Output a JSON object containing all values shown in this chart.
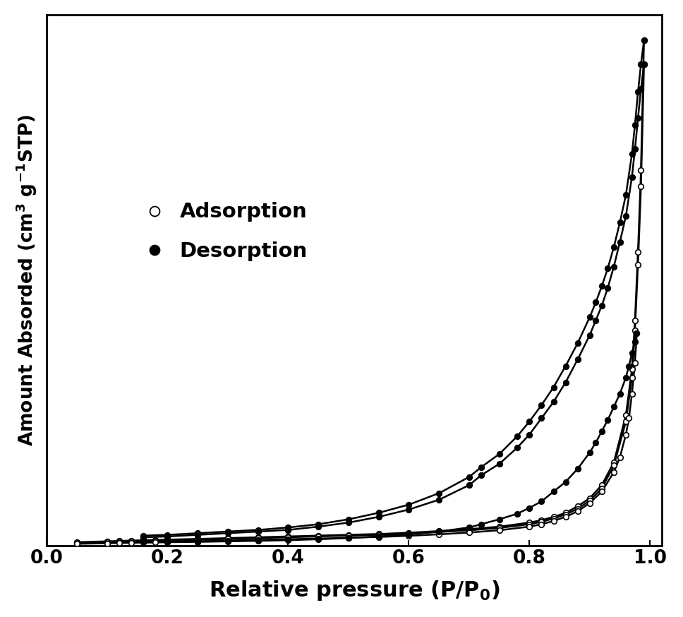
{
  "ylabel": "Amount Absorded (cm$^3$ g$^{-1}$STP)",
  "xlabel": "Relative pressure (P/P$_0$)",
  "background_color": "#ffffff",
  "xlim": [
    0.0,
    1.02
  ],
  "legend_adsorption": "Adsorption",
  "legend_desorption": "Desorption",
  "curves": [
    {
      "name": "curve1_ads",
      "type": "adsorption",
      "x": [
        0.05,
        0.1,
        0.12,
        0.14,
        0.16,
        0.18,
        0.2,
        0.25,
        0.3,
        0.35,
        0.4,
        0.45,
        0.5,
        0.55,
        0.6,
        0.65,
        0.7,
        0.75,
        0.8,
        0.82,
        0.84,
        0.86,
        0.88,
        0.9,
        0.92,
        0.94,
        0.96,
        0.97,
        0.975,
        0.98,
        0.985,
        0.99
      ],
      "y": [
        2,
        2.5,
        2.8,
        3.0,
        3.2,
        3.4,
        3.6,
        4.0,
        4.5,
        5.0,
        5.5,
        6.0,
        6.5,
        7.0,
        7.8,
        8.8,
        10.0,
        11.5,
        14,
        15.5,
        17.5,
        20,
        24,
        29,
        37,
        51,
        80,
        108,
        138,
        180,
        230,
        310
      ]
    },
    {
      "name": "curve1_des",
      "type": "desorption",
      "x": [
        0.99,
        0.985,
        0.98,
        0.975,
        0.97,
        0.96,
        0.95,
        0.94,
        0.93,
        0.92,
        0.91,
        0.9,
        0.88,
        0.86,
        0.84,
        0.82,
        0.8,
        0.78,
        0.75,
        0.72,
        0.7,
        0.65,
        0.6,
        0.55,
        0.5,
        0.45,
        0.4,
        0.35,
        0.3,
        0.25,
        0.2,
        0.16
      ],
      "y": [
        310,
        295,
        278,
        258,
        240,
        215,
        198,
        183,
        170,
        159,
        149,
        140,
        124,
        110,
        97,
        86,
        76,
        67,
        56,
        48,
        42,
        32,
        25,
        20,
        16,
        13,
        11,
        9.5,
        8.5,
        7.5,
        6.5,
        6.0
      ]
    },
    {
      "name": "curve2_ads",
      "type": "adsorption",
      "x": [
        0.05,
        0.1,
        0.12,
        0.14,
        0.16,
        0.18,
        0.2,
        0.25,
        0.3,
        0.35,
        0.4,
        0.45,
        0.5,
        0.55,
        0.6,
        0.65,
        0.7,
        0.75,
        0.8,
        0.82,
        0.84,
        0.86,
        0.88,
        0.9,
        0.92,
        0.94,
        0.96,
        0.97,
        0.975,
        0.98,
        0.985,
        0.99
      ],
      "y": [
        1.5,
        2.0,
        2.2,
        2.4,
        2.6,
        2.8,
        3.0,
        3.5,
        4.0,
        4.5,
        5.0,
        5.5,
        6.0,
        6.5,
        7.3,
        8.2,
        9.3,
        10.7,
        13,
        14.5,
        16.5,
        19,
        22.5,
        27.5,
        35,
        49,
        76,
        103,
        132,
        172,
        220,
        295
      ]
    },
    {
      "name": "curve2_des",
      "type": "desorption",
      "x": [
        0.99,
        0.985,
        0.98,
        0.975,
        0.97,
        0.96,
        0.95,
        0.94,
        0.93,
        0.92,
        0.91,
        0.9,
        0.88,
        0.86,
        0.84,
        0.82,
        0.8,
        0.78,
        0.75,
        0.72,
        0.7,
        0.65,
        0.6,
        0.55,
        0.5,
        0.45,
        0.4,
        0.35,
        0.3,
        0.25,
        0.2,
        0.16
      ],
      "y": [
        295,
        280,
        262,
        243,
        226,
        202,
        186,
        171,
        158,
        147,
        138,
        129,
        114,
        100,
        88,
        78,
        68,
        60,
        50,
        43,
        37,
        28,
        22,
        17.5,
        14,
        11.5,
        9.5,
        8.5,
        7.5,
        6.5,
        5.5,
        5.0
      ]
    },
    {
      "name": "curve3_ads",
      "type": "adsorption",
      "x": [
        0.05,
        0.1,
        0.12,
        0.14,
        0.16,
        0.18,
        0.2,
        0.25,
        0.3,
        0.35,
        0.4,
        0.45,
        0.5,
        0.55,
        0.6,
        0.65,
        0.7,
        0.75,
        0.8,
        0.82,
        0.84,
        0.86,
        0.88,
        0.9,
        0.92,
        0.94,
        0.95,
        0.96,
        0.965,
        0.97,
        0.975,
        0.978
      ],
      "y": [
        1.0,
        1.3,
        1.5,
        1.6,
        1.8,
        2.0,
        2.2,
        2.6,
        3.0,
        3.4,
        3.8,
        4.2,
        4.7,
        5.2,
        5.9,
        6.8,
        7.9,
        9.3,
        11.5,
        13,
        15,
        17.5,
        21,
        26,
        33,
        45,
        54,
        68,
        78,
        93,
        112,
        130
      ]
    },
    {
      "name": "curve3_des",
      "type": "desorption",
      "x": [
        0.978,
        0.975,
        0.97,
        0.965,
        0.96,
        0.95,
        0.94,
        0.93,
        0.92,
        0.91,
        0.9,
        0.88,
        0.86,
        0.84,
        0.82,
        0.8,
        0.78,
        0.75,
        0.72,
        0.7,
        0.65,
        0.6,
        0.55,
        0.5,
        0.45,
        0.4,
        0.35,
        0.3,
        0.25,
        0.2,
        0.16
      ],
      "y": [
        130,
        125,
        118,
        110,
        103,
        93,
        85,
        77,
        70,
        63,
        57,
        47,
        39,
        33,
        27,
        23,
        19.5,
        16,
        13,
        11,
        8.5,
        6.8,
        5.5,
        4.5,
        3.8,
        3.2,
        2.8,
        2.5,
        2.2,
        2.0,
        1.8
      ]
    }
  ]
}
